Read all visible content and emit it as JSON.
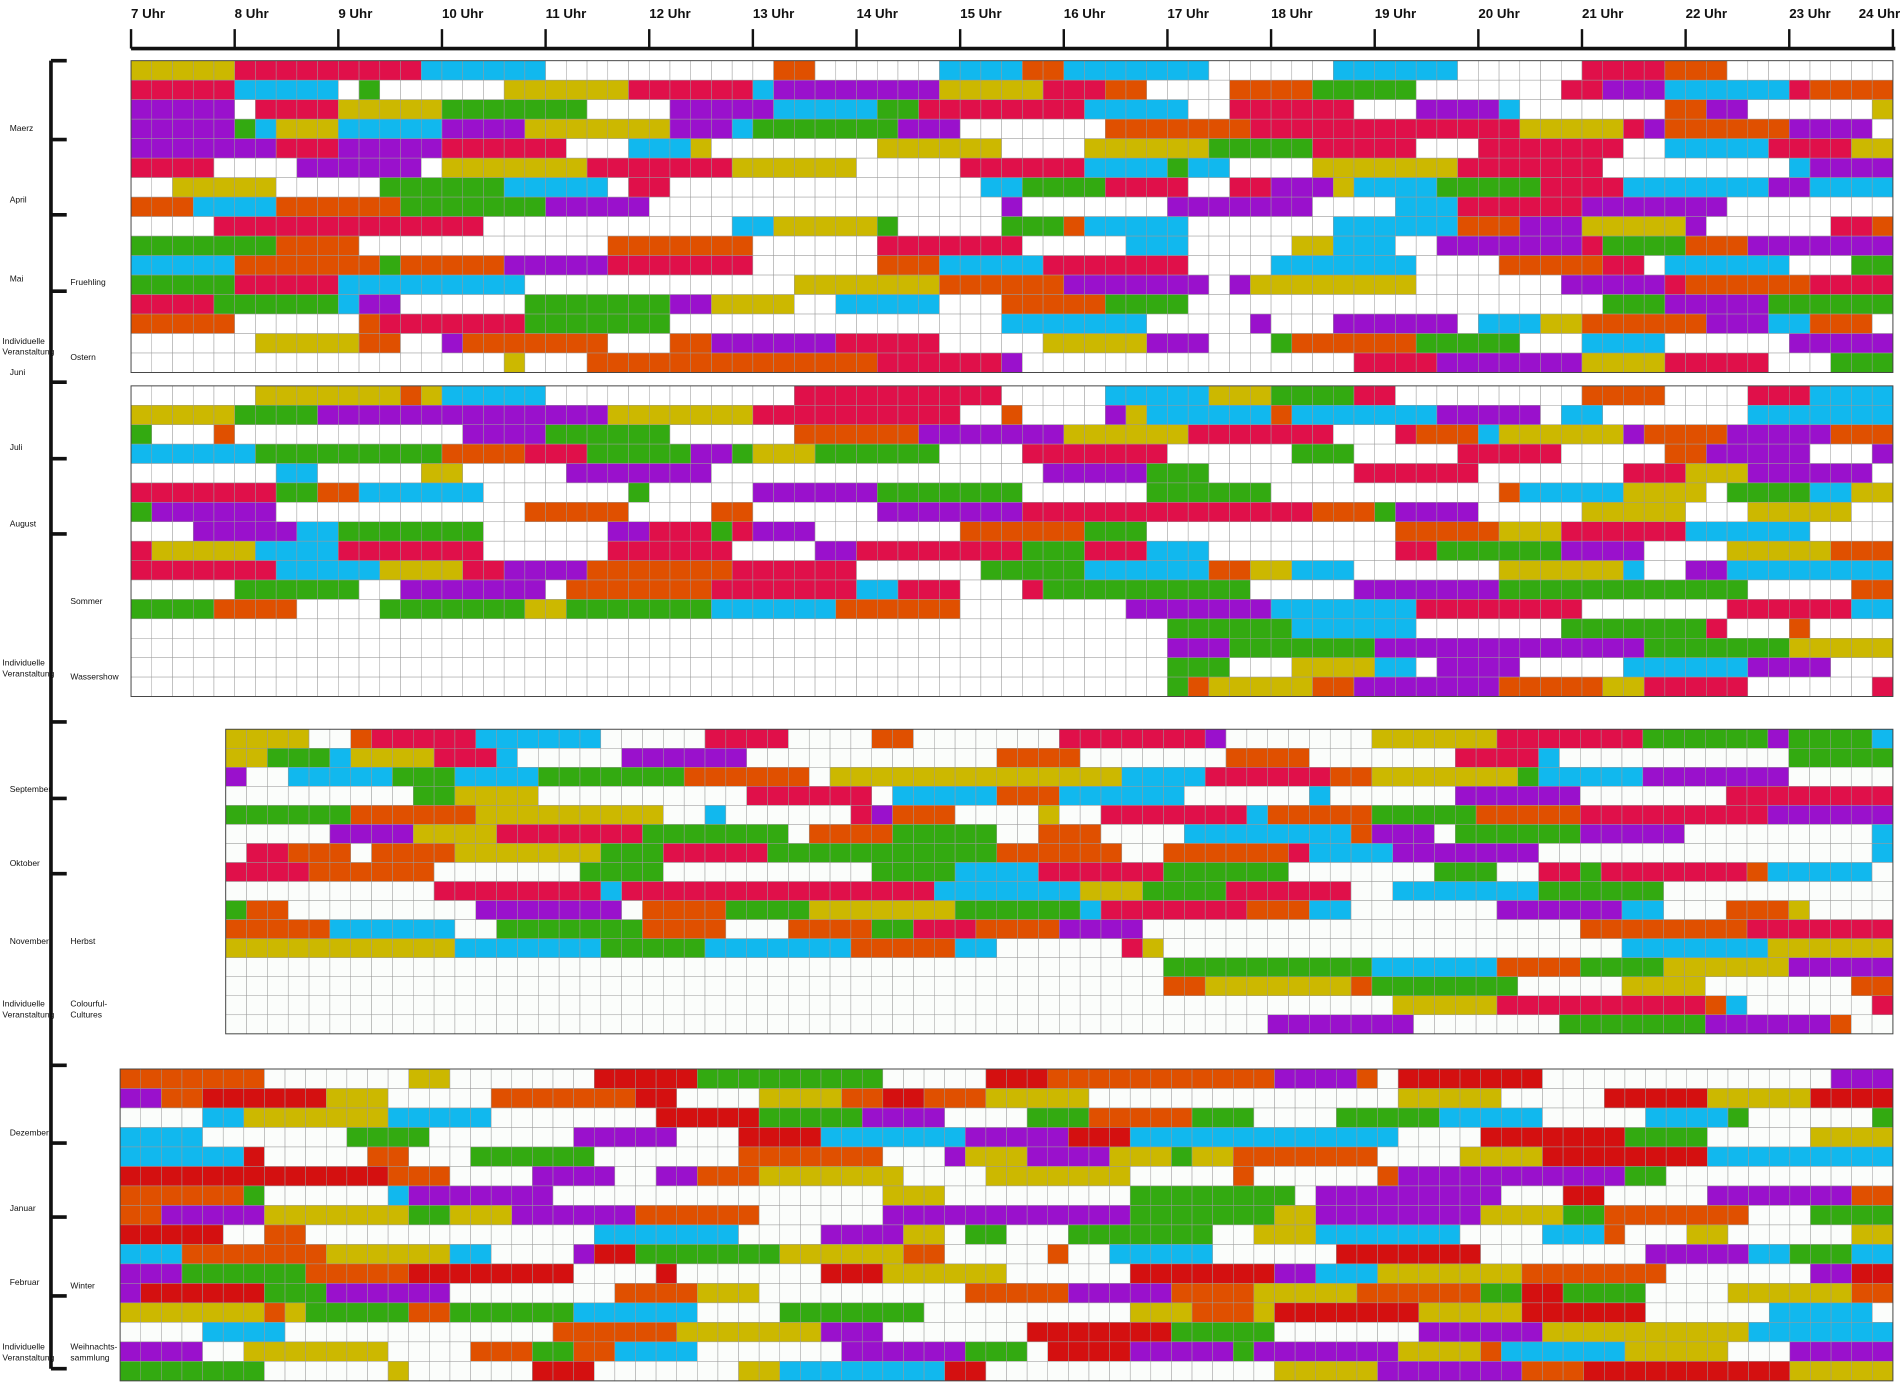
{
  "hours": [
    "7 Uhr",
    "8 Uhr",
    "9 Uhr",
    "10 Uhr",
    "11 Uhr",
    "12 Uhr",
    "13 Uhr",
    "14 Uhr",
    "15 Uhr",
    "16 Uhr",
    "17 Uhr",
    "18 Uhr",
    "19 Uhr",
    "20 Uhr",
    "21 Uhr",
    "22 Uhr",
    "23 Uhr",
    "24 Uhr"
  ],
  "months": [
    [
      "Maerz"
    ],
    [
      "April"
    ],
    [
      "Mai"
    ],
    [
      "Individuelle",
      "Veranstaltung"
    ],
    [
      "Juni"
    ],
    [
      "Juli"
    ],
    [
      "August"
    ],
    [
      "Individuelle",
      "Veranstaltung"
    ],
    [
      "September"
    ],
    [
      "Oktober"
    ],
    [
      "November"
    ],
    [
      "Individuelle",
      "Veranstaltung"
    ],
    [
      "Dezember"
    ],
    [
      "Januar"
    ],
    [
      "Februar"
    ],
    [
      "Individuelle",
      "Veranstaltung"
    ]
  ],
  "seasons": [
    [
      "Fruehling"
    ],
    [
      "Ostern"
    ],
    [
      "Sommer"
    ],
    [
      "Wassershow"
    ],
    [
      "Herbst"
    ],
    [
      "Colourful-",
      "Cultures"
    ],
    [
      "Winter"
    ],
    [
      "Weihnachts-",
      "sammlung"
    ]
  ]
}
